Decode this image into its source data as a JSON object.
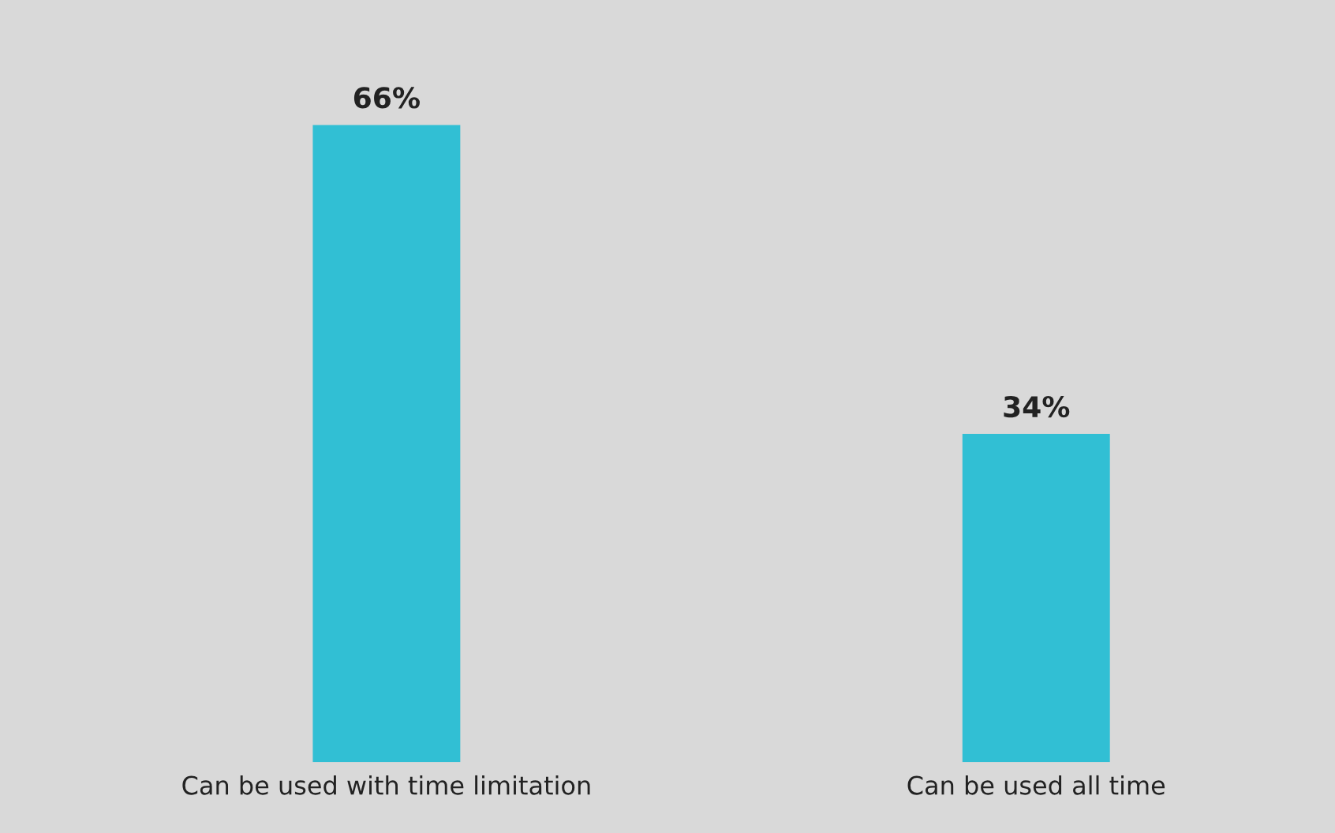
{
  "chart_data": {
    "type": "bar",
    "categories": [
      "Can be used with time limitation",
      "Can be used all time"
    ],
    "values": [
      66,
      34
    ],
    "color": "#31bfd4",
    "value_labels": [
      "66%",
      "34%"
    ],
    "grid": false,
    "legend": false
  }
}
